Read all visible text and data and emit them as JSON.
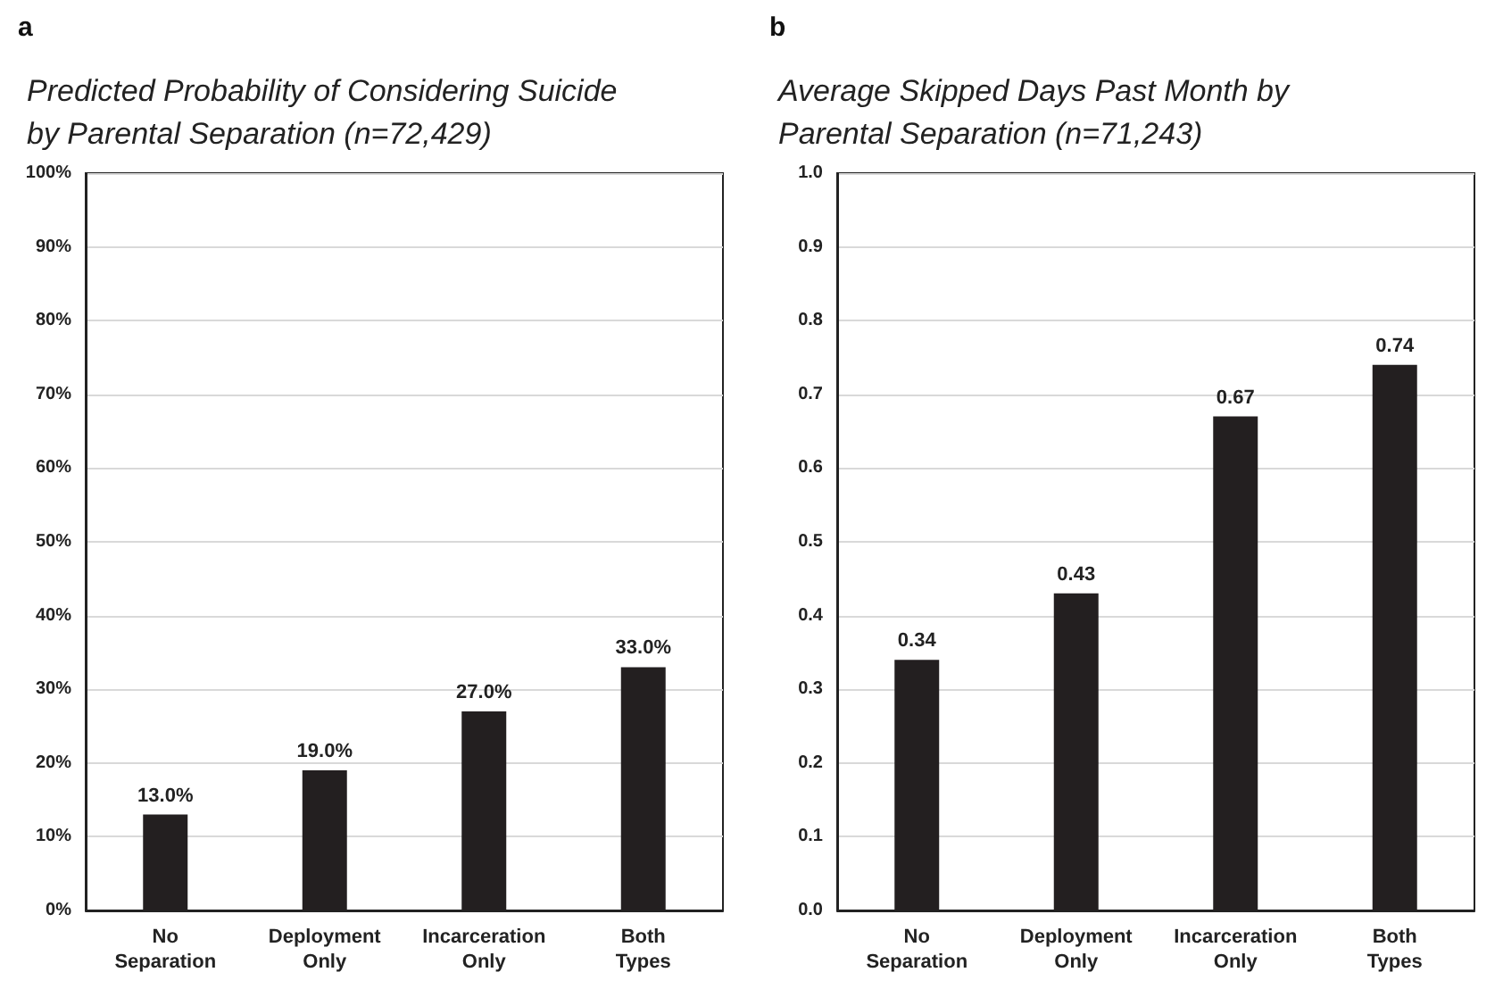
{
  "chart_data": [
    {
      "type": "bar",
      "title": "Predicted Probability of Considering Suicide\nby Parental Separation (n=72,429)",
      "annotations": [
        "a"
      ],
      "categories": [
        "No\nSeparation",
        "Deployment\nOnly",
        "Incarceration\nOnly",
        "Both\nTypes"
      ],
      "values": [
        13,
        19,
        27,
        33
      ],
      "value_labels": [
        "13.0%",
        "19.0%",
        "27.0%",
        "33.0%"
      ],
      "color": "#231f20",
      "ylim": [
        0,
        100
      ],
      "yticks": [
        {
          "value": 0,
          "label": "0%"
        },
        {
          "value": 10,
          "label": "10%"
        },
        {
          "value": 20,
          "label": "20%"
        },
        {
          "value": 30,
          "label": "30%"
        },
        {
          "value": 40,
          "label": "40%"
        },
        {
          "value": 50,
          "label": "50%"
        },
        {
          "value": 60,
          "label": "60%"
        },
        {
          "value": 70,
          "label": "70%"
        },
        {
          "value": 80,
          "label": "80%"
        },
        {
          "value": 90,
          "label": "90%"
        },
        {
          "value": 100,
          "label": "100%"
        }
      ],
      "grid": "y"
    },
    {
      "type": "bar",
      "title": "Average Skipped Days Past Month by\nParental Separation (n=71,243)",
      "annotations": [
        "b"
      ],
      "categories": [
        "No\nSeparation",
        "Deployment\nOnly",
        "Incarceration\nOnly",
        "Both\nTypes"
      ],
      "values": [
        0.34,
        0.43,
        0.67,
        0.74
      ],
      "data_labels": true,
      "color": "#231f20",
      "ylim": [
        0,
        1
      ],
      "yticks": [
        {
          "value": 0,
          "label": "0.0"
        },
        {
          "value": 0.1,
          "label": "0.1"
        },
        {
          "value": 0.2,
          "label": "0.2"
        },
        {
          "value": 0.3,
          "label": "0.3"
        },
        {
          "value": 0.4,
          "label": "0.4"
        },
        {
          "value": 0.5,
          "label": "0.5"
        },
        {
          "value": 0.6,
          "label": "0.6"
        },
        {
          "value": 0.7,
          "label": "0.7"
        },
        {
          "value": 0.8,
          "label": "0.8"
        },
        {
          "value": 0.9,
          "label": "0.9"
        },
        {
          "value": 1,
          "label": "1.0"
        }
      ],
      "grid": "y"
    }
  ]
}
